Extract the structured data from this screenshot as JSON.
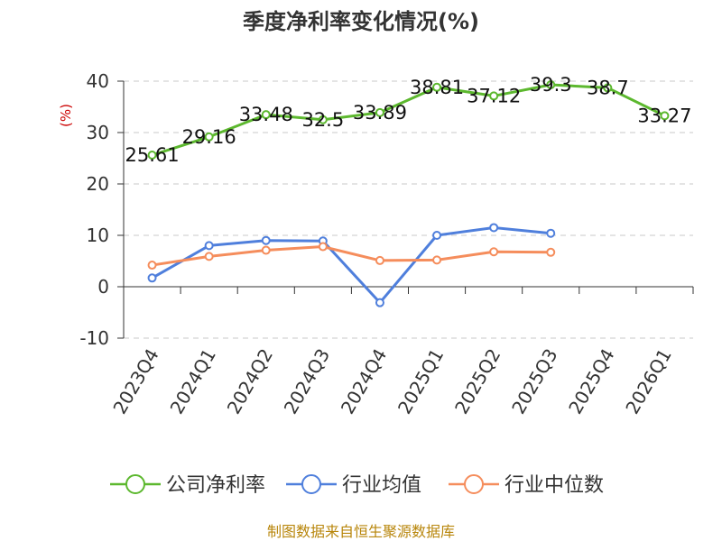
{
  "chart_data": {
    "type": "line",
    "title": "季度净利率变化情况(%)",
    "ylabel": "(%)",
    "ylim": [
      -10,
      40
    ],
    "yticks": [
      -10,
      0,
      10,
      20,
      30,
      40
    ],
    "categories": [
      "2023Q4",
      "2024Q1",
      "2024Q2",
      "2024Q3",
      "2024Q4",
      "2025Q1",
      "2025Q2",
      "2025Q3",
      "2025Q4",
      "2026Q1"
    ],
    "grid": true,
    "legend_position": "bottom",
    "series": [
      {
        "name": "公司净利率",
        "color": "#5cb82e",
        "show_labels": true,
        "values": [
          25.61,
          29.16,
          33.48,
          32.5,
          33.89,
          38.81,
          37.12,
          39.3,
          38.7,
          33.27
        ]
      },
      {
        "name": "行业均值",
        "color": "#4f7fdc",
        "show_labels": false,
        "values": [
          1.7,
          8.0,
          9.0,
          8.9,
          -3.1,
          10.0,
          11.5,
          10.4,
          null,
          null
        ]
      },
      {
        "name": "行业中位数",
        "color": "#f58d5c",
        "show_labels": false,
        "values": [
          4.2,
          5.9,
          7.1,
          7.8,
          5.1,
          5.2,
          6.8,
          6.7,
          null,
          null
        ]
      }
    ]
  },
  "source": "制图数据来自恒生聚源数据库"
}
